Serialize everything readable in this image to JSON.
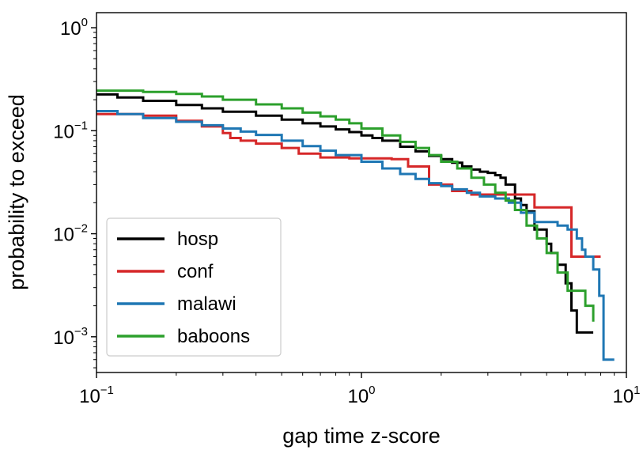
{
  "chart_data": {
    "type": "line",
    "title": "",
    "xlabel": "gap time z-score",
    "ylabel": "probability to exceed",
    "xscale": "log",
    "yscale": "log",
    "xlim": [
      0.1,
      10
    ],
    "ylim": [
      0.00045,
      1.4
    ],
    "x_ticks": [
      {
        "value": 0.1,
        "base": "10",
        "exp": "−1"
      },
      {
        "value": 1,
        "base": "10",
        "exp": "0"
      },
      {
        "value": 10,
        "base": "10",
        "exp": "1"
      }
    ],
    "y_ticks": [
      {
        "value": 1,
        "base": "10",
        "exp": "0"
      },
      {
        "value": 0.1,
        "base": "10",
        "exp": "−1"
      },
      {
        "value": 0.01,
        "base": "10",
        "exp": "−2"
      },
      {
        "value": 0.001,
        "base": "10",
        "exp": "−3"
      }
    ],
    "grid": false,
    "legend": "lower-left",
    "series": [
      {
        "name": "hosp",
        "color": "#000000",
        "x": [
          0.1,
          0.12,
          0.15,
          0.2,
          0.25,
          0.3,
          0.4,
          0.5,
          0.6,
          0.7,
          0.8,
          0.9,
          1.0,
          1.1,
          1.2,
          1.4,
          1.6,
          1.8,
          2.0,
          2.2,
          2.4,
          2.6,
          2.8,
          3.0,
          3.2,
          3.35,
          3.5,
          3.8,
          4.0,
          4.2,
          4.5,
          5.0,
          5.2,
          5.5,
          5.9,
          6.2,
          6.5,
          7.0,
          7.5
        ],
        "y": [
          0.225,
          0.21,
          0.195,
          0.178,
          0.165,
          0.153,
          0.14,
          0.128,
          0.118,
          0.11,
          0.103,
          0.097,
          0.09,
          0.085,
          0.08,
          0.07,
          0.063,
          0.057,
          0.053,
          0.049,
          0.045,
          0.042,
          0.04,
          0.039,
          0.037,
          0.035,
          0.03,
          0.022,
          0.019,
          0.0165,
          0.011,
          0.008,
          0.0065,
          0.005,
          0.0033,
          0.0018,
          0.0011,
          0.0011,
          0.0011
        ]
      },
      {
        "name": "conf",
        "color": "#d62728",
        "x": [
          0.1,
          0.15,
          0.2,
          0.25,
          0.3,
          0.32,
          0.35,
          0.4,
          0.5,
          0.58,
          0.7,
          0.9,
          1.1,
          1.3,
          1.5,
          1.8,
          2.2,
          2.6,
          3.0,
          3.5,
          4.5,
          5.0,
          5.7,
          6.2,
          8.0
        ],
        "y": [
          0.145,
          0.14,
          0.125,
          0.11,
          0.095,
          0.085,
          0.08,
          0.075,
          0.068,
          0.06,
          0.055,
          0.054,
          0.054,
          0.053,
          0.045,
          0.03,
          0.026,
          0.024,
          0.024,
          0.024,
          0.018,
          0.018,
          0.018,
          0.006,
          0.006
        ]
      },
      {
        "name": "malawi",
        "color": "#1f77b4",
        "x": [
          0.1,
          0.12,
          0.15,
          0.2,
          0.25,
          0.3,
          0.35,
          0.4,
          0.5,
          0.6,
          0.7,
          0.8,
          1.0,
          1.2,
          1.4,
          1.6,
          1.8,
          2.0,
          2.2,
          2.5,
          2.8,
          3.2,
          3.6,
          4.0,
          4.5,
          5.0,
          5.5,
          6.0,
          6.5,
          6.8,
          7.0,
          7.5,
          7.9,
          8.2,
          9.0
        ],
        "y": [
          0.155,
          0.145,
          0.133,
          0.122,
          0.113,
          0.105,
          0.098,
          0.091,
          0.08,
          0.071,
          0.064,
          0.058,
          0.05,
          0.043,
          0.038,
          0.034,
          0.031,
          0.029,
          0.027,
          0.025,
          0.023,
          0.022,
          0.02,
          0.016,
          0.013,
          0.013,
          0.012,
          0.011,
          0.009,
          0.007,
          0.006,
          0.0045,
          0.0025,
          0.0006,
          0.0006
        ]
      },
      {
        "name": "baboons",
        "color": "#2ca02c",
        "x": [
          0.1,
          0.15,
          0.2,
          0.25,
          0.3,
          0.4,
          0.5,
          0.6,
          0.7,
          0.8,
          0.9,
          1.0,
          1.2,
          1.4,
          1.6,
          1.8,
          2.0,
          2.3,
          2.6,
          2.9,
          3.2,
          3.5,
          3.8,
          4.2,
          4.6,
          5.0,
          5.5,
          6.0,
          6.5,
          7.0,
          7.5
        ],
        "y": [
          0.245,
          0.238,
          0.228,
          0.215,
          0.2,
          0.18,
          0.165,
          0.15,
          0.138,
          0.128,
          0.118,
          0.105,
          0.09,
          0.078,
          0.068,
          0.058,
          0.05,
          0.043,
          0.035,
          0.03,
          0.025,
          0.021,
          0.017,
          0.012,
          0.009,
          0.0065,
          0.0042,
          0.0028,
          0.0028,
          0.002,
          0.0014
        ]
      }
    ]
  }
}
